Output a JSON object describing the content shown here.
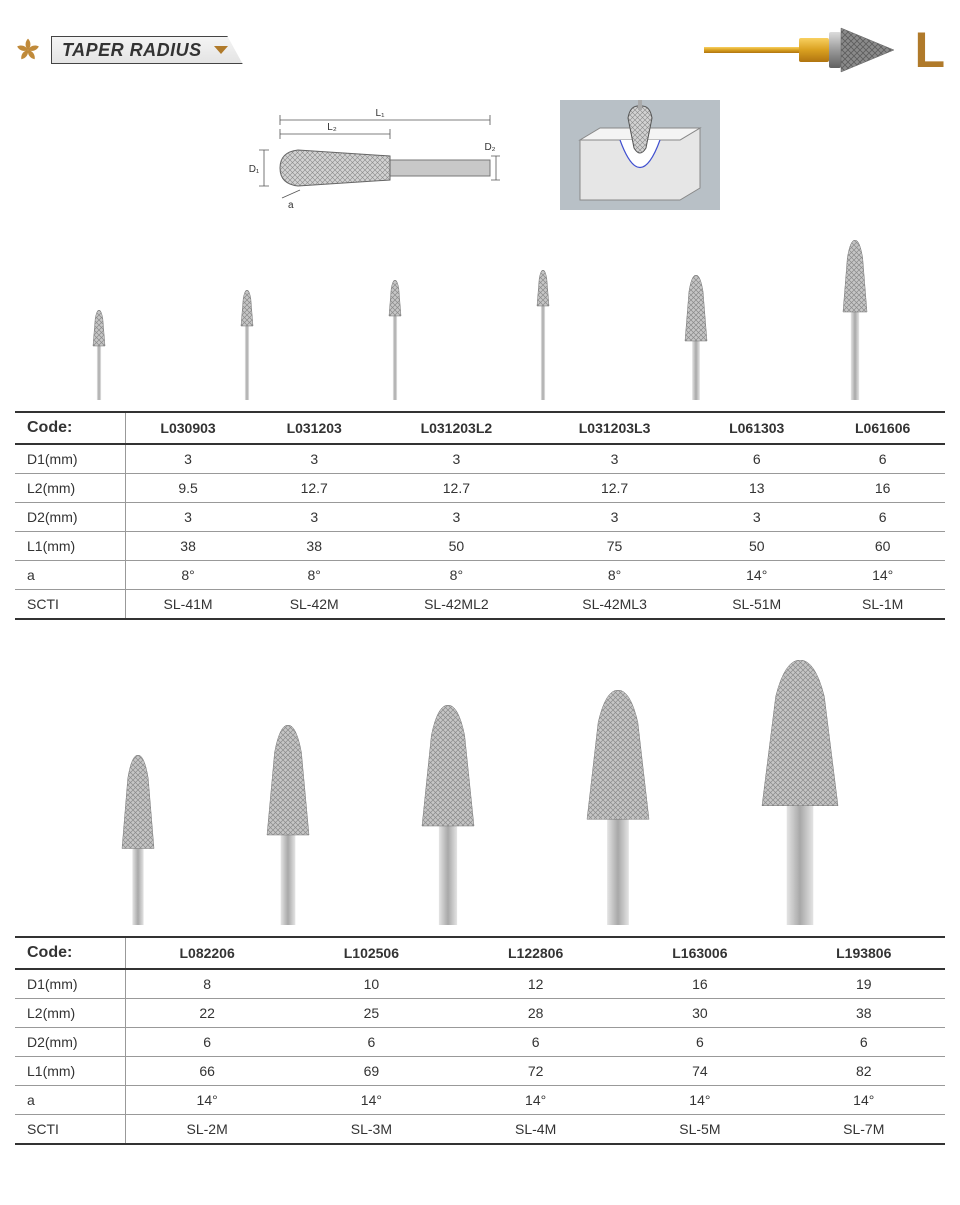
{
  "header": {
    "title": "TAPER RADIUS",
    "type_letter": "L",
    "accent_color": "#b07a2a"
  },
  "diagram_labels": {
    "L1": "L₁",
    "L2": "L₂",
    "D1": "D₁",
    "D2": "D₂",
    "a": "a"
  },
  "row_labels": [
    "Code:",
    "D1(mm)",
    "L2(mm)",
    "D2(mm)",
    "L1(mm)",
    "a",
    "SCTI"
  ],
  "table1": {
    "columns": [
      "L030903",
      "L031203",
      "L031203L2",
      "L031203L3",
      "L061303",
      "L061606"
    ],
    "D1": [
      "3",
      "3",
      "3",
      "3",
      "6",
      "6"
    ],
    "L2": [
      "9.5",
      "12.7",
      "12.7",
      "12.7",
      "13",
      "16"
    ],
    "D2": [
      "3",
      "3",
      "3",
      "3",
      "3",
      "6"
    ],
    "L1": [
      "38",
      "38",
      "50",
      "75",
      "50",
      "60"
    ],
    "a": [
      "8°",
      "8°",
      "8°",
      "8°",
      "14°",
      "14°"
    ],
    "SCTI": [
      "SL-41M",
      "SL-42M",
      "SL-42ML2",
      "SL-42ML3",
      "SL-51M",
      "SL-1M"
    ],
    "img_heights": [
      90,
      110,
      120,
      130,
      125,
      160
    ],
    "head_widths": [
      12,
      12,
      12,
      12,
      22,
      24
    ]
  },
  "table2": {
    "columns": [
      "L082206",
      "L102506",
      "L122806",
      "L163006",
      "L193806"
    ],
    "D1": [
      "8",
      "10",
      "12",
      "16",
      "19"
    ],
    "L2": [
      "22",
      "25",
      "28",
      "30",
      "38"
    ],
    "D2": [
      "6",
      "6",
      "6",
      "6",
      "6"
    ],
    "L1": [
      "66",
      "69",
      "72",
      "74",
      "82"
    ],
    "a": [
      "14°",
      "14°",
      "14°",
      "14°",
      "14°"
    ],
    "SCTI": [
      "SL-2M",
      "SL-3M",
      "SL-4M",
      "SL-5M",
      "SL-7M"
    ],
    "img_heights": [
      170,
      200,
      220,
      235,
      265
    ],
    "head_widths": [
      32,
      42,
      52,
      62,
      76
    ]
  },
  "styling": {
    "shank_color": "#b8b8b8",
    "head_crosshatch": "#8a8a8a",
    "head_fill": "#c6c6c6",
    "table_border": "#999999",
    "heavy_border": "#333333",
    "font_size_cell": 14,
    "font_size_code": 16
  }
}
